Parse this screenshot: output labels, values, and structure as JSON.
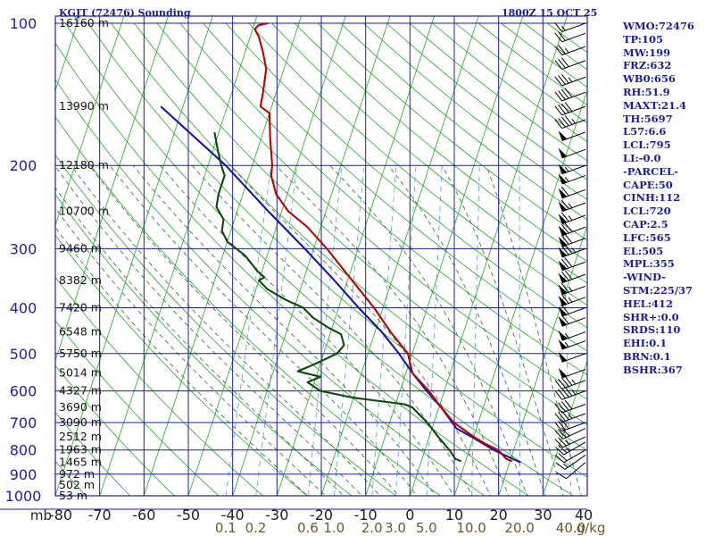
{
  "header": {
    "station_title": "KGJT (72476) Sounding",
    "valid_time": "1800Z 15 OCT 25"
  },
  "colors": {
    "frame": "#1c1ca8",
    "temperature": "#c00000",
    "dewpoint": "#0a4a0a",
    "parcel": "#1414b4",
    "dry_adiabat": "#22aa22",
    "moist_adiabat": "#2a6a2a",
    "mixing_ratio": "#4b9fe0",
    "pressure_label": "#1e1eaa",
    "temp_axis_label": "#202020",
    "mixing_label": "#6a5a2a",
    "wind_barb": "#000000"
  },
  "stats": [
    "WMO:72476",
    "TP:105",
    "MW:199",
    "FRZ:632",
    "WB0:656",
    "RH:51.9",
    "MAXT:21.4",
    "TH:5697",
    "L57:6.6",
    "LCL:795",
    "LI:-0.0",
    "-PARCEL-",
    "CAPE:50",
    "CINH:112",
    "LCL:720",
    "CAP:2.5",
    "LFC:565",
    "EL:505",
    "MPL:355",
    "-WIND-",
    "STM:225/37",
    "HEL:412",
    "SHR+:0.0",
    "SRDS:110",
    "EHI:0.1",
    "BRN:0.1",
    "BSHR:367"
  ],
  "chart_data": {
    "type": "line",
    "title": "KGJT (72476) Sounding",
    "subtitle": "1800Z 15 OCT 25",
    "xlabel": "",
    "ylabel": "mb",
    "x_axis_unit": "°C",
    "y_axis_unit": "mb",
    "y_scale": "log",
    "xlim": [
      -80,
      40
    ],
    "ylim": [
      1000,
      100
    ],
    "pressure_ticks": [
      100,
      200,
      300,
      400,
      500,
      600,
      700,
      800,
      900,
      1000
    ],
    "temperature_ticks": [
      -80,
      -70,
      -60,
      -50,
      -40,
      -30,
      -20,
      -10,
      0,
      10,
      20,
      30,
      40
    ],
    "mixing_ratio_ticks": [
      "0.1",
      "0.2",
      "0.6",
      "1.0",
      "2.0",
      "3.0",
      "5.0",
      "10.0",
      "20.0",
      "40.0"
    ],
    "mixing_ratio_unit": "g/kg",
    "height_labels": [
      {
        "p": 100,
        "label": "16160 m"
      },
      {
        "p": 150,
        "label": "13990 m"
      },
      {
        "p": 200,
        "label": "12180 m"
      },
      {
        "p": 250,
        "label": "10700 m"
      },
      {
        "p": 300,
        "label": "9460 m"
      },
      {
        "p": 350,
        "label": "8382 m"
      },
      {
        "p": 400,
        "label": "7420 m"
      },
      {
        "p": 450,
        "label": "6548 m"
      },
      {
        "p": 500,
        "label": "5750 m"
      },
      {
        "p": 550,
        "label": "5014 m"
      },
      {
        "p": 600,
        "label": "4327 m"
      },
      {
        "p": 650,
        "label": "3690 m"
      },
      {
        "p": 700,
        "label": "3090 m"
      },
      {
        "p": 750,
        "label": "2512 m"
      },
      {
        "p": 800,
        "label": "1963 m"
      },
      {
        "p": 850,
        "label": "1465 m"
      },
      {
        "p": 900,
        "label": "972 m"
      },
      {
        "p": 950,
        "label": "502 m"
      },
      {
        "p": 1000,
        "label": "53 m"
      }
    ],
    "series": [
      {
        "id": "temperature",
        "points": [
          {
            "p": 845,
            "t": 20.5
          },
          {
            "p": 835,
            "t": 19.0
          },
          {
            "p": 800,
            "t": 16.5
          },
          {
            "p": 775,
            "t": 13.0
          },
          {
            "p": 750,
            "t": 10.0
          },
          {
            "p": 700,
            "t": 4.5
          },
          {
            "p": 650,
            "t": 0.5
          },
          {
            "p": 600,
            "t": -3.5
          },
          {
            "p": 550,
            "t": -8.5
          },
          {
            "p": 500,
            "t": -11.0
          },
          {
            "p": 450,
            "t": -16.5
          },
          {
            "p": 400,
            "t": -22.0
          },
          {
            "p": 350,
            "t": -29.0
          },
          {
            "p": 300,
            "t": -37.0
          },
          {
            "p": 270,
            "t": -43.0
          },
          {
            "p": 250,
            "t": -48.5
          },
          {
            "p": 230,
            "t": -52.5
          },
          {
            "p": 210,
            "t": -55.0
          },
          {
            "p": 200,
            "t": -55.5
          },
          {
            "p": 175,
            "t": -58.0
          },
          {
            "p": 155,
            "t": -60.0
          },
          {
            "p": 150,
            "t": -62.5
          },
          {
            "p": 140,
            "t": -63.0
          },
          {
            "p": 125,
            "t": -64.0
          },
          {
            "p": 115,
            "t": -66.0
          },
          {
            "p": 107,
            "t": -68.0
          },
          {
            "p": 103,
            "t": -69.5
          },
          {
            "p": 101,
            "t": -69.0
          },
          {
            "p": 100,
            "t": -67.0
          }
        ]
      },
      {
        "id": "dewpoint",
        "points": [
          {
            "p": 845,
            "t": 9.0
          },
          {
            "p": 835,
            "t": 7.5
          },
          {
            "p": 800,
            "t": 5.5
          },
          {
            "p": 750,
            "t": 2.0
          },
          {
            "p": 700,
            "t": -1.5
          },
          {
            "p": 650,
            "t": -6.0
          },
          {
            "p": 640,
            "t": -8.0
          },
          {
            "p": 620,
            "t": -20.0
          },
          {
            "p": 600,
            "t": -28.0
          },
          {
            "p": 575,
            "t": -31.5
          },
          {
            "p": 560,
            "t": -29.0
          },
          {
            "p": 545,
            "t": -34.5
          },
          {
            "p": 525,
            "t": -31.0
          },
          {
            "p": 500,
            "t": -27.0
          },
          {
            "p": 480,
            "t": -26.0
          },
          {
            "p": 455,
            "t": -27.5
          },
          {
            "p": 440,
            "t": -31.0
          },
          {
            "p": 420,
            "t": -35.0
          },
          {
            "p": 400,
            "t": -38.0
          },
          {
            "p": 385,
            "t": -42.5
          },
          {
            "p": 365,
            "t": -47.5
          },
          {
            "p": 350,
            "t": -50.0
          },
          {
            "p": 345,
            "t": -49.0
          },
          {
            "p": 335,
            "t": -51.0
          },
          {
            "p": 310,
            "t": -55.0
          },
          {
            "p": 290,
            "t": -60.0
          },
          {
            "p": 275,
            "t": -62.0
          },
          {
            "p": 260,
            "t": -62.5
          },
          {
            "p": 245,
            "t": -65.0
          },
          {
            "p": 230,
            "t": -65.5
          },
          {
            "p": 210,
            "t": -65.5
          },
          {
            "p": 200,
            "t": -67.0
          },
          {
            "p": 185,
            "t": -69.0
          },
          {
            "p": 170,
            "t": -71.0
          }
        ]
      },
      {
        "id": "parcel",
        "points": [
          {
            "p": 850,
            "t": 22.5
          },
          {
            "p": 800,
            "t": 15.5
          },
          {
            "p": 750,
            "t": 9.5
          },
          {
            "p": 720,
            "t": 5.5
          },
          {
            "p": 650,
            "t": 0.5
          },
          {
            "p": 600,
            "t": -4.0
          },
          {
            "p": 550,
            "t": -8.5
          },
          {
            "p": 500,
            "t": -13.0
          },
          {
            "p": 450,
            "t": -18.5
          },
          {
            "p": 400,
            "t": -25.5
          },
          {
            "p": 350,
            "t": -33.0
          },
          {
            "p": 300,
            "t": -42.0
          },
          {
            "p": 250,
            "t": -53.0
          },
          {
            "p": 200,
            "t": -66.0
          },
          {
            "p": 150,
            "t": -85.0
          }
        ]
      }
    ],
    "wind_barbs": [
      {
        "p": 850,
        "dir": 230,
        "spd": 10
      },
      {
        "p": 820,
        "dir": 235,
        "spd": 15
      },
      {
        "p": 800,
        "dir": 240,
        "spd": 20
      },
      {
        "p": 770,
        "dir": 240,
        "spd": 25
      },
      {
        "p": 750,
        "dir": 245,
        "spd": 25
      },
      {
        "p": 720,
        "dir": 245,
        "spd": 30
      },
      {
        "p": 700,
        "dir": 250,
        "spd": 30
      },
      {
        "p": 670,
        "dir": 250,
        "spd": 35
      },
      {
        "p": 640,
        "dir": 250,
        "spd": 40
      },
      {
        "p": 600,
        "dir": 250,
        "spd": 45
      },
      {
        "p": 570,
        "dir": 250,
        "spd": 45
      },
      {
        "p": 540,
        "dir": 250,
        "spd": 50
      },
      {
        "p": 500,
        "dir": 250,
        "spd": 50
      },
      {
        "p": 470,
        "dir": 250,
        "spd": 55
      },
      {
        "p": 450,
        "dir": 250,
        "spd": 55
      },
      {
        "p": 420,
        "dir": 250,
        "spd": 60
      },
      {
        "p": 400,
        "dir": 250,
        "spd": 60
      },
      {
        "p": 380,
        "dir": 250,
        "spd": 65
      },
      {
        "p": 360,
        "dir": 250,
        "spd": 65
      },
      {
        "p": 340,
        "dir": 250,
        "spd": 70
      },
      {
        "p": 320,
        "dir": 250,
        "spd": 70
      },
      {
        "p": 300,
        "dir": 250,
        "spd": 75
      },
      {
        "p": 285,
        "dir": 250,
        "spd": 70
      },
      {
        "p": 270,
        "dir": 250,
        "spd": 70
      },
      {
        "p": 255,
        "dir": 250,
        "spd": 65
      },
      {
        "p": 240,
        "dir": 250,
        "spd": 65
      },
      {
        "p": 225,
        "dir": 250,
        "spd": 60
      },
      {
        "p": 210,
        "dir": 250,
        "spd": 55
      },
      {
        "p": 200,
        "dir": 250,
        "spd": 55
      },
      {
        "p": 185,
        "dir": 250,
        "spd": 50
      },
      {
        "p": 170,
        "dir": 250,
        "spd": 50
      },
      {
        "p": 160,
        "dir": 250,
        "spd": 45
      },
      {
        "p": 150,
        "dir": 250,
        "spd": 40
      },
      {
        "p": 140,
        "dir": 250,
        "spd": 40
      },
      {
        "p": 130,
        "dir": 250,
        "spd": 35
      },
      {
        "p": 120,
        "dir": 250,
        "spd": 30
      },
      {
        "p": 112,
        "dir": 250,
        "spd": 25
      },
      {
        "p": 105,
        "dir": 250,
        "spd": 20
      },
      {
        "p": 100,
        "dir": 250,
        "spd": 15
      }
    ]
  }
}
